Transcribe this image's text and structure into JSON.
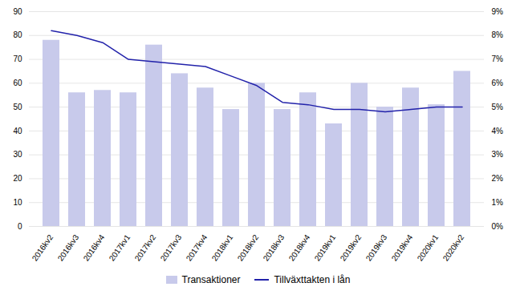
{
  "chart_data": {
    "type": "bar",
    "categories": [
      "2016kv2",
      "2016kv3",
      "2016kv4",
      "2017kv1",
      "2017kv2",
      "2017kv3",
      "2017kv4",
      "2018kv1",
      "2018kv2",
      "2018kv3",
      "2018kv4",
      "2019kv1",
      "2019kv2",
      "2019kv3",
      "2019kv4",
      "2020kv1",
      "2020kv2"
    ],
    "series": [
      {
        "name": "Transaktioner",
        "type": "bar",
        "color": "#c8caeb",
        "values": [
          78,
          56,
          57,
          56,
          76,
          64,
          58,
          49,
          60,
          49,
          56,
          43,
          60,
          50,
          58,
          51,
          65
        ]
      },
      {
        "name": "Tillväxttakten i lån",
        "type": "line",
        "color": "#2222aa",
        "axis": "y2",
        "values": [
          8.2,
          8.0,
          7.7,
          7.0,
          6.9,
          6.8,
          6.7,
          6.3,
          5.9,
          5.2,
          5.1,
          4.9,
          4.9,
          4.8,
          4.9,
          5.0,
          5.0
        ]
      }
    ],
    "ylim": [
      0,
      90
    ],
    "yticks": [
      0,
      10,
      20,
      30,
      40,
      50,
      60,
      70,
      80,
      90
    ],
    "y2lim": [
      0,
      9
    ],
    "y2ticks": [
      {
        "value": 0,
        "label": "0%"
      },
      {
        "value": 1,
        "label": "1%"
      },
      {
        "value": 2,
        "label": "2%"
      },
      {
        "value": 3,
        "label": "3%"
      },
      {
        "value": 4,
        "label": "4%"
      },
      {
        "value": 5,
        "label": "5%"
      },
      {
        "value": 6,
        "label": "6%"
      },
      {
        "value": 7,
        "label": "7%"
      },
      {
        "value": 8,
        "label": "8%"
      },
      {
        "value": 9,
        "label": "9%"
      }
    ],
    "grid": true,
    "legend": "bottom"
  }
}
